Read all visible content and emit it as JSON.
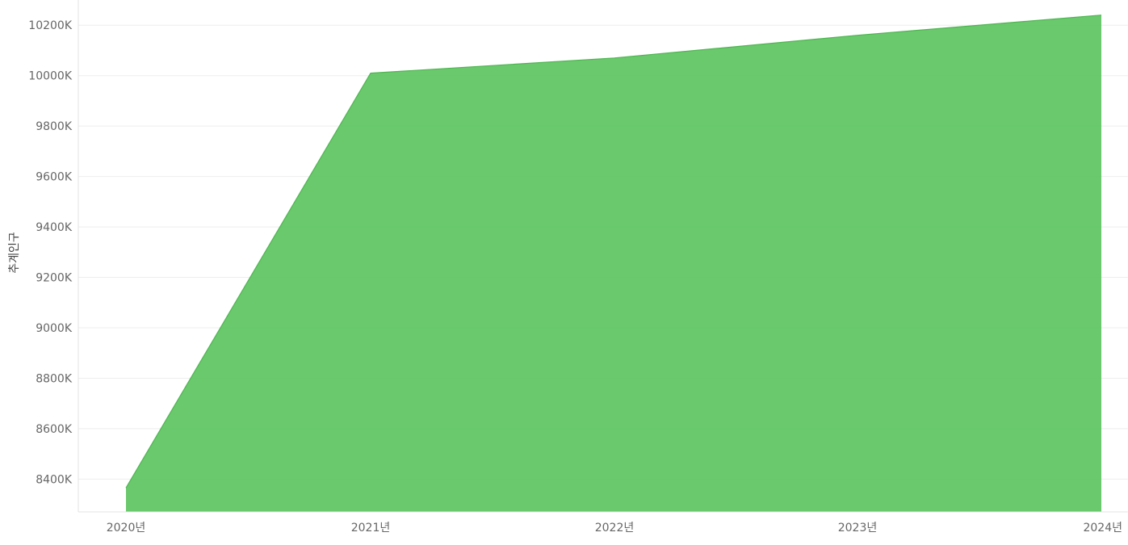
{
  "chart_data": {
    "type": "area",
    "title": "",
    "xlabel": "",
    "ylabel": "추계인구",
    "categories": [
      "2020년",
      "2021년",
      "2022년",
      "2023년",
      "2024년"
    ],
    "series": [
      {
        "values": [
          8365000,
          10010000,
          10070000,
          10160000,
          10240000
        ]
      }
    ],
    "ylim": [
      8270000,
      10300000
    ],
    "y_ticks": [
      8400000,
      8600000,
      8800000,
      9000000,
      9200000,
      9400000,
      9600000,
      9800000,
      10000000,
      10200000
    ],
    "y_tick_labels": [
      "8400K",
      "8600K",
      "8800K",
      "9000K",
      "9200K",
      "9400K",
      "9600K",
      "9800K",
      "10000K",
      "10200K"
    ],
    "grid": true,
    "legend": "none",
    "colors": {
      "area_fill": "#5cc45f",
      "area_stroke": "#4fb552",
      "grid": "#eeeeee",
      "axis": "#e3e3e3"
    }
  }
}
